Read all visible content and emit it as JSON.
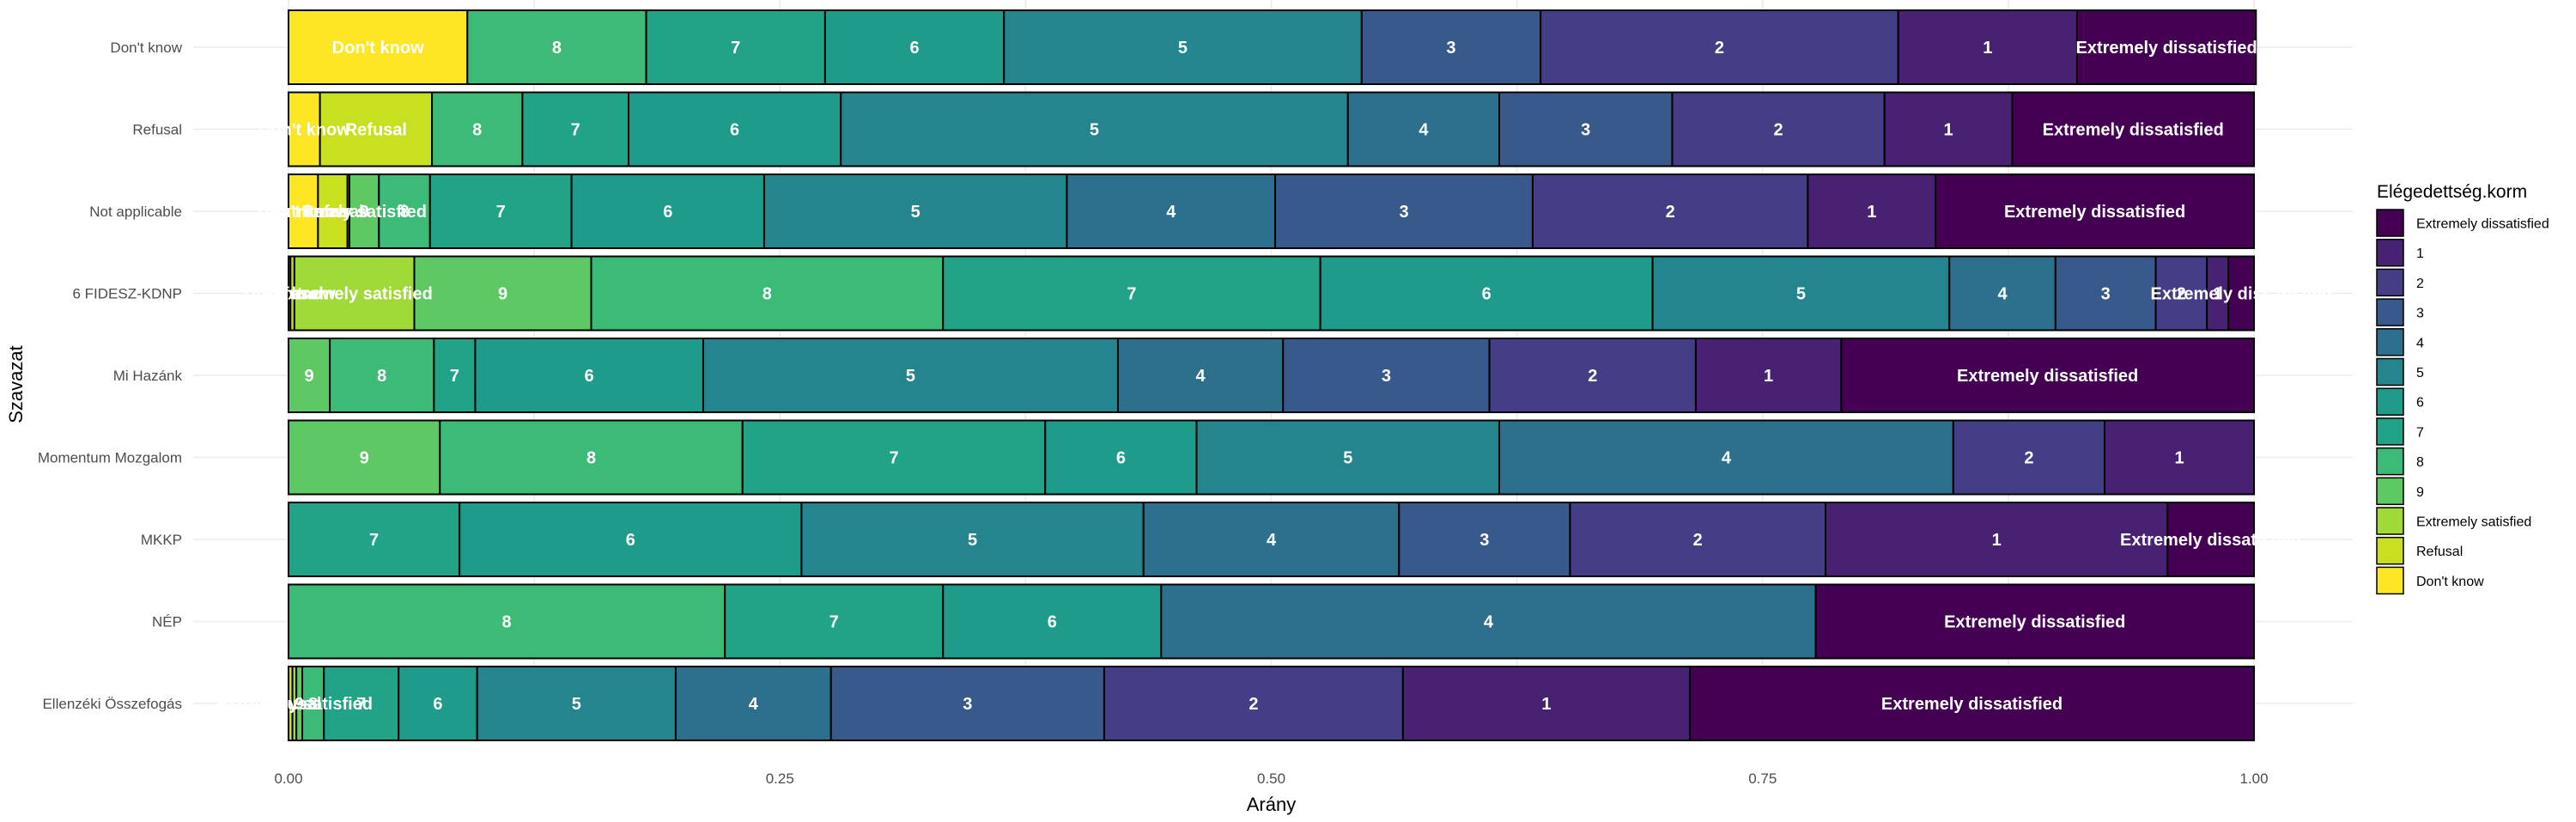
{
  "chart_data": {
    "type": "bar",
    "orientation": "horizontal",
    "stacked": true,
    "xlabel": "Arány",
    "ylabel": "Szavazat",
    "xlim": [
      0,
      1
    ],
    "x_ticks": [
      "0.00",
      "0.25",
      "0.50",
      "0.75",
      "1.00"
    ],
    "grid": true,
    "legend_title": "Elégedettség.korm",
    "legend_position": "right",
    "stack_order": [
      "Don't know",
      "Refusal",
      "Extremely satisfied",
      "9",
      "8",
      "7",
      "6",
      "5",
      "4",
      "3",
      "2",
      "1",
      "Extremely dissatisfied"
    ],
    "legend": [
      {
        "label": "Extremely dissatisfied",
        "color": "#440154"
      },
      {
        "label": "1",
        "color": "#482173"
      },
      {
        "label": "2",
        "color": "#433e85"
      },
      {
        "label": "3",
        "color": "#38598c"
      },
      {
        "label": "4",
        "color": "#2d708e"
      },
      {
        "label": "5",
        "color": "#25858e"
      },
      {
        "label": "6",
        "color": "#1e9b8a"
      },
      {
        "label": "7",
        "color": "#20a386"
      },
      {
        "label": "8",
        "color": "#3bbb75"
      },
      {
        "label": "9",
        "color": "#5ec962"
      },
      {
        "label": "Extremely satisfied",
        "color": "#a0da39"
      },
      {
        "label": "Refusal",
        "color": "#c8e020"
      },
      {
        "label": "Don't know",
        "color": "#fde725"
      }
    ],
    "categories": [
      "Don't know",
      "Refusal",
      "Not applicable",
      "6 FIDESZ-KDNP",
      "Mi Hazánk",
      "Momentum Mozgalom",
      "MKKP",
      "NÉP",
      "Ellenzéki Összefogás"
    ],
    "bars": [
      {
        "category": "Don't know",
        "segments": [
          {
            "level": "Don't know",
            "value": 0.091
          },
          {
            "level": "8",
            "value": 0.091
          },
          {
            "level": "7",
            "value": 0.091
          },
          {
            "level": "6",
            "value": 0.091
          },
          {
            "level": "5",
            "value": 0.182
          },
          {
            "level": "3",
            "value": 0.091
          },
          {
            "level": "2",
            "value": 0.182
          },
          {
            "level": "1",
            "value": 0.091
          },
          {
            "level": "Extremely dissatisfied",
            "value": 0.091
          }
        ]
      },
      {
        "category": "Refusal",
        "segments": [
          {
            "level": "Don't know",
            "value": 0.016
          },
          {
            "level": "Refusal",
            "value": 0.057
          },
          {
            "level": "8",
            "value": 0.046
          },
          {
            "level": "7",
            "value": 0.054
          },
          {
            "level": "6",
            "value": 0.108
          },
          {
            "level": "5",
            "value": 0.258
          },
          {
            "level": "4",
            "value": 0.077
          },
          {
            "level": "3",
            "value": 0.088
          },
          {
            "level": "2",
            "value": 0.108
          },
          {
            "level": "1",
            "value": 0.065
          },
          {
            "level": "Extremely dissatisfied",
            "value": 0.123
          }
        ]
      },
      {
        "category": "Not applicable",
        "segments": [
          {
            "level": "Don't know",
            "value": 0.015
          },
          {
            "level": "Refusal",
            "value": 0.015
          },
          {
            "level": "Extremely satisfied",
            "value": 0.001
          },
          {
            "level": "9",
            "value": 0.015
          },
          {
            "level": "8",
            "value": 0.026
          },
          {
            "level": "7",
            "value": 0.072
          },
          {
            "level": "6",
            "value": 0.098
          },
          {
            "level": "5",
            "value": 0.154
          },
          {
            "level": "4",
            "value": 0.106
          },
          {
            "level": "3",
            "value": 0.131
          },
          {
            "level": "2",
            "value": 0.14
          },
          {
            "level": "1",
            "value": 0.065
          },
          {
            "level": "Extremely dissatisfied",
            "value": 0.162
          }
        ]
      },
      {
        "category": "6 FIDESZ-KDNP",
        "segments": [
          {
            "level": "Don't know",
            "value": 0.001
          },
          {
            "level": "Refusal",
            "value": 0.002
          },
          {
            "level": "Extremely satisfied",
            "value": 0.061
          },
          {
            "level": "9",
            "value": 0.09
          },
          {
            "level": "8",
            "value": 0.179
          },
          {
            "level": "7",
            "value": 0.192
          },
          {
            "level": "6",
            "value": 0.169
          },
          {
            "level": "5",
            "value": 0.151
          },
          {
            "level": "4",
            "value": 0.054
          },
          {
            "level": "3",
            "value": 0.051
          },
          {
            "level": "2",
            "value": 0.026
          },
          {
            "level": "1",
            "value": 0.011
          },
          {
            "level": "Extremely dissatisfied",
            "value": 0.013
          }
        ]
      },
      {
        "category": "Mi Hazánk",
        "segments": [
          {
            "level": "9",
            "value": 0.021
          },
          {
            "level": "8",
            "value": 0.053
          },
          {
            "level": "7",
            "value": 0.021
          },
          {
            "level": "6",
            "value": 0.116
          },
          {
            "level": "5",
            "value": 0.211
          },
          {
            "level": "4",
            "value": 0.084
          },
          {
            "level": "3",
            "value": 0.105
          },
          {
            "level": "2",
            "value": 0.105
          },
          {
            "level": "1",
            "value": 0.074
          },
          {
            "level": "Extremely dissatisfied",
            "value": 0.21
          }
        ]
      },
      {
        "category": "Momentum Mozgalom",
        "segments": [
          {
            "level": "9",
            "value": 0.077
          },
          {
            "level": "8",
            "value": 0.154
          },
          {
            "level": "7",
            "value": 0.154
          },
          {
            "level": "6",
            "value": 0.077
          },
          {
            "level": "5",
            "value": 0.154
          },
          {
            "level": "4",
            "value": 0.231
          },
          {
            "level": "2",
            "value": 0.077
          },
          {
            "level": "1",
            "value": 0.076
          }
        ]
      },
      {
        "category": "MKKP",
        "segments": [
          {
            "level": "7",
            "value": 0.087
          },
          {
            "level": "6",
            "value": 0.174
          },
          {
            "level": "5",
            "value": 0.174
          },
          {
            "level": "4",
            "value": 0.13
          },
          {
            "level": "3",
            "value": 0.087
          },
          {
            "level": "2",
            "value": 0.13
          },
          {
            "level": "1",
            "value": 0.174
          },
          {
            "level": "Extremely dissatisfied",
            "value": 0.044
          }
        ]
      },
      {
        "category": "NÉP",
        "segments": [
          {
            "level": "8",
            "value": 0.222
          },
          {
            "level": "7",
            "value": 0.111
          },
          {
            "level": "6",
            "value": 0.111
          },
          {
            "level": "4",
            "value": 0.333
          },
          {
            "level": "Extremely dissatisfied",
            "value": 0.223
          }
        ]
      },
      {
        "category": "Ellenzéki Összefogás",
        "segments": [
          {
            "level": "Refusal",
            "value": 0.002
          },
          {
            "level": "Extremely satisfied",
            "value": 0.002
          },
          {
            "level": "9",
            "value": 0.003
          },
          {
            "level": "8",
            "value": 0.011
          },
          {
            "level": "7",
            "value": 0.038
          },
          {
            "level": "6",
            "value": 0.04
          },
          {
            "level": "5",
            "value": 0.101
          },
          {
            "level": "4",
            "value": 0.079
          },
          {
            "level": "3",
            "value": 0.139
          },
          {
            "level": "2",
            "value": 0.152
          },
          {
            "level": "1",
            "value": 0.146
          },
          {
            "level": "Extremely dissatisfied",
            "value": 0.287
          }
        ]
      }
    ]
  }
}
